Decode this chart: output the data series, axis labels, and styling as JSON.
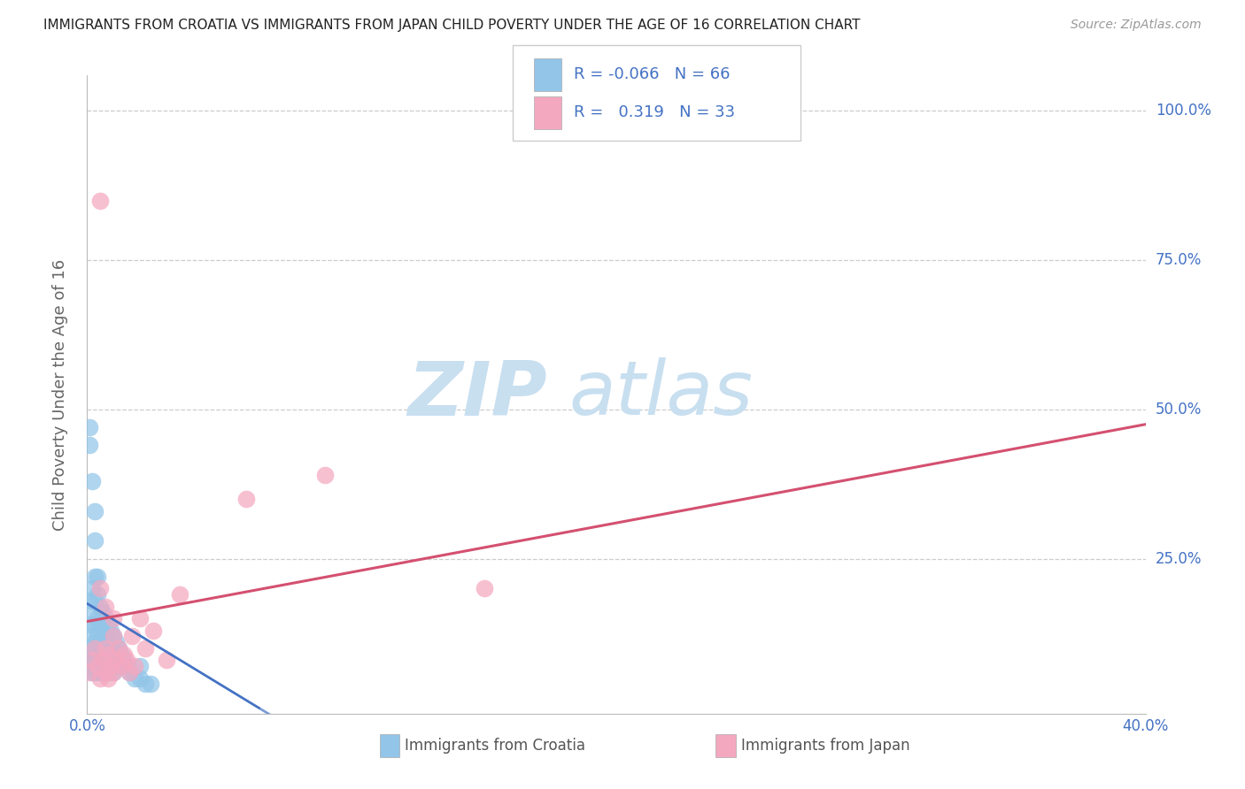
{
  "title": "IMMIGRANTS FROM CROATIA VS IMMIGRANTS FROM JAPAN CHILD POVERTY UNDER THE AGE OF 16 CORRELATION CHART",
  "source": "Source: ZipAtlas.com",
  "ylabel": "Child Poverty Under the Age of 16",
  "xlim": [
    0.0,
    0.4
  ],
  "ylim": [
    -0.01,
    1.06
  ],
  "ytick_vals": [
    0.25,
    0.5,
    0.75,
    1.0
  ],
  "ytick_labels": [
    "25.0%",
    "50.0%",
    "75.0%",
    "100.0%"
  ],
  "xtick_vals": [
    0.0,
    0.4
  ],
  "xtick_labels": [
    "0.0%",
    "40.0%"
  ],
  "croatia_color": "#92C5E8",
  "japan_color": "#F4A8C0",
  "croatia_line_color": "#4472C4",
  "japan_line_color": "#D45070",
  "grid_color": "#CCCCCC",
  "watermark_color": "#C8DFF0",
  "legend_R_croatia": "-0.066",
  "legend_N_croatia": "66",
  "legend_R_japan": "0.319",
  "legend_N_japan": "33",
  "title_color": "#222222",
  "source_color": "#999999",
  "ylabel_color": "#666666",
  "tick_color": "#4472C4",
  "bottom_legend_text_color": "#555555",
  "croatia_x": [
    0.001,
    0.001,
    0.001,
    0.001,
    0.002,
    0.002,
    0.002,
    0.002,
    0.002,
    0.002,
    0.003,
    0.003,
    0.003,
    0.003,
    0.003,
    0.003,
    0.003,
    0.004,
    0.004,
    0.004,
    0.004,
    0.004,
    0.005,
    0.005,
    0.005,
    0.005,
    0.005,
    0.005,
    0.006,
    0.006,
    0.006,
    0.006,
    0.006,
    0.007,
    0.007,
    0.007,
    0.007,
    0.008,
    0.008,
    0.008,
    0.008,
    0.009,
    0.009,
    0.009,
    0.01,
    0.01,
    0.01,
    0.011,
    0.011,
    0.012,
    0.012,
    0.013,
    0.014,
    0.015,
    0.016,
    0.018,
    0.02,
    0.022,
    0.024,
    0.001,
    0.001,
    0.002,
    0.003,
    0.003,
    0.004,
    0.02
  ],
  "croatia_y": [
    0.18,
    0.14,
    0.1,
    0.08,
    0.2,
    0.16,
    0.12,
    0.09,
    0.07,
    0.06,
    0.22,
    0.18,
    0.14,
    0.11,
    0.09,
    0.07,
    0.06,
    0.19,
    0.15,
    0.12,
    0.09,
    0.07,
    0.17,
    0.14,
    0.11,
    0.09,
    0.07,
    0.06,
    0.16,
    0.13,
    0.1,
    0.08,
    0.06,
    0.15,
    0.12,
    0.09,
    0.07,
    0.14,
    0.11,
    0.08,
    0.06,
    0.13,
    0.1,
    0.07,
    0.12,
    0.09,
    0.06,
    0.11,
    0.08,
    0.1,
    0.07,
    0.09,
    0.08,
    0.07,
    0.06,
    0.05,
    0.05,
    0.04,
    0.04,
    0.47,
    0.44,
    0.38,
    0.33,
    0.28,
    0.22,
    0.07
  ],
  "japan_x": [
    0.001,
    0.002,
    0.003,
    0.004,
    0.005,
    0.005,
    0.006,
    0.007,
    0.007,
    0.008,
    0.008,
    0.009,
    0.01,
    0.01,
    0.011,
    0.012,
    0.013,
    0.014,
    0.015,
    0.016,
    0.017,
    0.018,
    0.02,
    0.022,
    0.025,
    0.03,
    0.035,
    0.06,
    0.09,
    0.15,
    0.005,
    0.007,
    0.01
  ],
  "japan_y": [
    0.06,
    0.08,
    0.1,
    0.07,
    0.05,
    0.85,
    0.08,
    0.1,
    0.06,
    0.09,
    0.05,
    0.07,
    0.12,
    0.06,
    0.08,
    0.1,
    0.07,
    0.09,
    0.08,
    0.06,
    0.12,
    0.07,
    0.15,
    0.1,
    0.13,
    0.08,
    0.19,
    0.35,
    0.39,
    0.2,
    0.2,
    0.17,
    0.15
  ],
  "croatia_trend_x0": 0.0,
  "croatia_trend_y0": 0.175,
  "croatia_trend_x1": 0.065,
  "croatia_trend_y1": 0.0,
  "croatia_trend_xdash": 0.065,
  "croatia_trend_xend": 0.4,
  "japan_trend_x0": 0.0,
  "japan_trend_y0": 0.145,
  "japan_trend_x1": 0.4,
  "japan_trend_y1": 0.475
}
